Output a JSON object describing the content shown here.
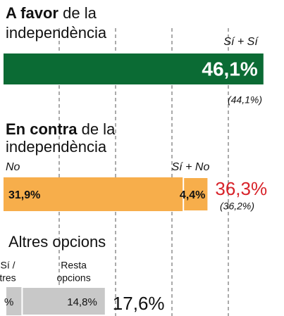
{
  "sections": [
    {
      "title_bold": "A favor",
      "title_rest": "de la",
      "title_line2": "independència",
      "segments": [
        {
          "name": "Sí + Sí",
          "value": 46.1,
          "value_label": "46,1%",
          "color": "#0b6b34"
        }
      ],
      "previous": "(44,1%)"
    },
    {
      "title_bold": "En contra",
      "title_rest": "de la",
      "title_line2": "independència",
      "segments": [
        {
          "name": "No",
          "value": 31.9,
          "value_label": "31,9%",
          "color": "#f7ae4b"
        },
        {
          "name": "Sí + No",
          "value": 4.4,
          "value_label": "4,4%",
          "color": "#f7ae4b"
        }
      ],
      "total": 36.3,
      "total_label": "36,3%",
      "total_color": "#d8232a",
      "previous": "(36,2%)"
    },
    {
      "title_rest": "Altres opcions",
      "segments": [
        {
          "name_lines": [
            "Sí /",
            "tres"
          ],
          "value": 2.8,
          "value_label": "%",
          "color": "#c8c8c8"
        },
        {
          "name_lines": [
            "Resta",
            "opcions"
          ],
          "value": 14.8,
          "value_label": "14,8%",
          "color": "#c8c8c8"
        }
      ],
      "total": 17.6,
      "total_label": "17,6%"
    }
  ],
  "xticks": [
    10,
    20,
    30,
    40
  ]
}
